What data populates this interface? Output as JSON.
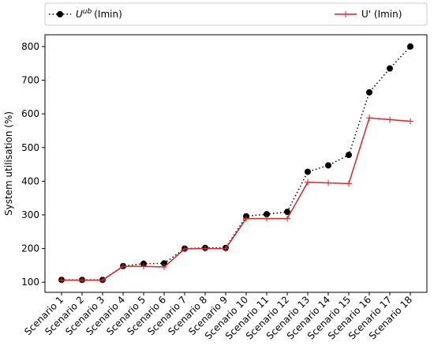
{
  "chart_data": {
    "type": "line",
    "categories": [
      "Scenario 1",
      "Scenario 2",
      "Scenario 3",
      "Scenario 4",
      "Scenario 5",
      "Scenario 6",
      "Scenario 7",
      "Scenario 8",
      "Scenario 9",
      "Scenario 10",
      "Scenario 11",
      "Scenario 12",
      "Scenario 13",
      "Scenario 14",
      "Scenario 15",
      "Scenario 16",
      "Scenario 17",
      "Scenario 18"
    ],
    "ylabel": "System utilisation (%)",
    "xlabel": "",
    "title": "",
    "ylim": [
      70,
      835
    ],
    "yticks": [
      100,
      200,
      300,
      400,
      500,
      600,
      700,
      800
    ],
    "grid": false,
    "legend_placement": "top, outside",
    "series": [
      {
        "name": "ub (Imin)",
        "name_prefix": "U",
        "name_superscript": "ub",
        "style": "dotted",
        "marker": "circle",
        "color": "#000000",
        "values": [
          107,
          107,
          107,
          148,
          155,
          156,
          200,
          202,
          202,
          296,
          302,
          309,
          428,
          447,
          478,
          664,
          735,
          800
        ]
      },
      {
        "name": "U' (Imin)",
        "style": "solid",
        "marker": "plus",
        "color": "#d62728",
        "values": [
          106,
          106,
          106,
          147,
          147,
          145,
          199,
          200,
          200,
          289,
          289,
          289,
          397,
          395,
          393,
          588,
          583,
          578
        ]
      }
    ]
  }
}
